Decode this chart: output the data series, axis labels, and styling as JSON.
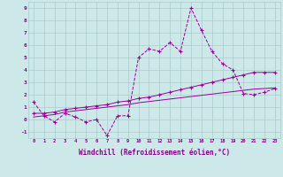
{
  "xlabel": "Windchill (Refroidissement éolien,°C)",
  "x_values": [
    0,
    1,
    2,
    3,
    4,
    5,
    6,
    7,
    8,
    9,
    10,
    11,
    12,
    13,
    14,
    15,
    16,
    17,
    18,
    19,
    20,
    21,
    22,
    23
  ],
  "line1_y": [
    1.4,
    0.3,
    -0.2,
    0.5,
    0.2,
    -0.2,
    0.0,
    -1.3,
    0.3,
    0.3,
    5.0,
    5.7,
    5.5,
    6.2,
    5.5,
    9.0,
    7.2,
    5.5,
    4.5,
    4.0,
    2.1,
    2.0,
    2.2,
    2.5
  ],
  "line2_y": [
    0.5,
    0.5,
    0.6,
    0.8,
    0.9,
    1.0,
    1.1,
    1.2,
    1.4,
    1.5,
    1.7,
    1.8,
    2.0,
    2.2,
    2.4,
    2.6,
    2.8,
    3.0,
    3.2,
    3.4,
    3.6,
    3.8,
    3.8,
    3.8
  ],
  "line3_y": [
    0.2,
    0.3,
    0.4,
    0.6,
    0.7,
    0.8,
    0.9,
    1.0,
    1.1,
    1.2,
    1.35,
    1.45,
    1.55,
    1.65,
    1.75,
    1.85,
    1.95,
    2.05,
    2.15,
    2.25,
    2.35,
    2.45,
    2.5,
    2.55
  ],
  "line_color": "#990099",
  "bg_color": "#cce8e8",
  "grid_color": "#aacccc",
  "ylim": [
    -1.5,
    9.5
  ],
  "xlim": [
    -0.5,
    23.5
  ],
  "yticks": [
    -1,
    0,
    1,
    2,
    3,
    4,
    5,
    6,
    7,
    8,
    9
  ],
  "xticks": [
    0,
    1,
    2,
    3,
    4,
    5,
    6,
    7,
    8,
    9,
    10,
    11,
    12,
    13,
    14,
    15,
    16,
    17,
    18,
    19,
    20,
    21,
    22,
    23
  ],
  "xlabel_color": "#880088",
  "tick_color": "#880088"
}
